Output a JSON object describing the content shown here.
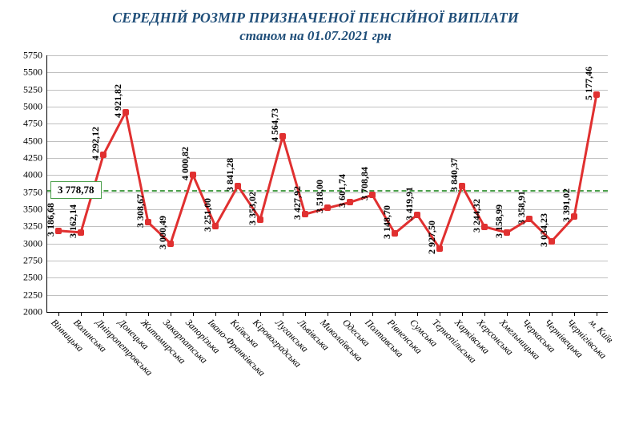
{
  "title": "СЕРЕДНІЙ РОЗМІР ПРИЗНАЧЕНОЇ ПЕНСІЙНОЇ ВИПЛАТИ",
  "subtitle": "станом на 01.07.2021 грн",
  "chart": {
    "type": "line",
    "ylim": [
      2000,
      5750
    ],
    "ytick_step": 250,
    "grid_color": "#c0c0c0",
    "line_color": "#e03030",
    "line_width": 3,
    "marker_color": "#e03030",
    "marker_size": 8,
    "background_color": "#ffffff",
    "average_line": {
      "value": 3778.78,
      "label": "3 778,78",
      "color": "#4a9e4a",
      "dash": true
    },
    "label_fontsize": 12,
    "categories": [
      "Вінницька",
      "Волинська",
      "Дніпропетровська",
      "Донецька",
      "Житомирська",
      "Закарпатська",
      "Запорізька",
      "Івано-Франківська",
      "Київська",
      "Кіровоградська",
      "Луганська",
      "Львівська",
      "Миколаївська",
      "Одеська",
      "Полтавська",
      "Рівненська",
      "Сумська",
      "Тернопільська",
      "Харківська",
      "Херсонська",
      "Хмельницька",
      "Черкаська",
      "Чернівецька",
      "Чернігівська",
      "м. Київ"
    ],
    "values": [
      3186.68,
      3162.14,
      4292.12,
      4921.82,
      3308.67,
      3000.49,
      4000.82,
      3251.0,
      3841.28,
      3353.02,
      4564.73,
      3427.92,
      3518.0,
      3601.74,
      3708.84,
      3148.7,
      3419.91,
      2927.5,
      3840.37,
      3244.32,
      3158.99,
      3358.91,
      3034.23,
      3391.02,
      5177.46
    ],
    "value_labels": [
      "3 186,68",
      "3 162,14",
      "4 292,12",
      "4 921,82",
      "3 308,67",
      "3 000,49",
      "4 000,82",
      "3 251,00",
      "3 841,28",
      "3 353,02",
      "4 564,73",
      "3 427,92",
      "3 518,00",
      "3 601,74",
      "3 708,84",
      "3 148,70",
      "3 419,91",
      "2 927,50",
      "3 840,37",
      "3 244,32",
      "3 158,99",
      "3 358,91",
      "3 034,23",
      "3 391,02",
      "5 177,46"
    ]
  }
}
